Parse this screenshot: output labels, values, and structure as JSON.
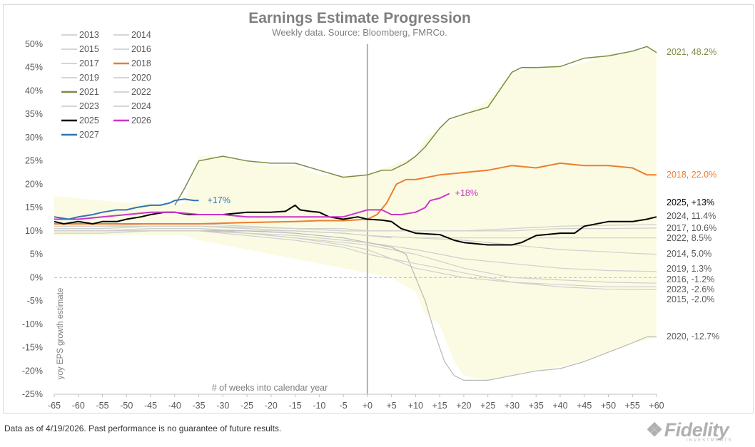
{
  "chart_data": {
    "type": "line",
    "title": "Earnings Estimate Progression",
    "subtitle": "Weekly data.  Source: Bloomberg, FMRCo.",
    "xlabel": "# of weeks into calendar year",
    "ylabel": "yoy EPS growth estimate",
    "xlim": [
      -65,
      60
    ],
    "ylim": [
      -25,
      50
    ],
    "x_ticks": [
      -65,
      -60,
      -55,
      -50,
      -45,
      -40,
      -35,
      -30,
      -25,
      -20,
      -15,
      -10,
      -5,
      0,
      5,
      10,
      15,
      20,
      25,
      30,
      35,
      40,
      45,
      50,
      55,
      60
    ],
    "x_tick_labels": [
      "-65",
      "-60",
      "-55",
      "-50",
      "-45",
      "-40",
      "-35",
      "-30",
      "-25",
      "-20",
      "-15",
      "-10",
      "-5",
      "+0",
      "+5",
      "+10",
      "+15",
      "+20",
      "+25",
      "+30",
      "+35",
      "+40",
      "+45",
      "+50",
      "+55",
      "+60"
    ],
    "y_ticks": [
      -25,
      -20,
      -15,
      -10,
      -5,
      0,
      5,
      10,
      15,
      20,
      25,
      30,
      35,
      40,
      45,
      50
    ],
    "y_tick_labels": [
      "-25%",
      "-20%",
      "-15%",
      "-10%",
      "-5%",
      "0%",
      "5%",
      "10%",
      "15%",
      "20%",
      "25%",
      "30%",
      "35%",
      "40%",
      "45%",
      "50%"
    ],
    "grid": false,
    "reference_lines": {
      "x": 0,
      "y": 0
    },
    "legend": {
      "placement": "top-left",
      "entries": [
        {
          "name": "2013",
          "color": "#c8c8c8"
        },
        {
          "name": "2014",
          "color": "#c8c8c8"
        },
        {
          "name": "2015",
          "color": "#c8c8c8"
        },
        {
          "name": "2016",
          "color": "#c8c8c8"
        },
        {
          "name": "2017",
          "color": "#c8c8c8"
        },
        {
          "name": "2018",
          "color": "#ed7d31"
        },
        {
          "name": "2019",
          "color": "#c8c8c8"
        },
        {
          "name": "2020",
          "color": "#c8c8c8"
        },
        {
          "name": "2021",
          "color": "#7a8c44"
        },
        {
          "name": "2022",
          "color": "#c8c8c8"
        },
        {
          "name": "2023",
          "color": "#c8c8c8"
        },
        {
          "name": "2024",
          "color": "#c8c8c8"
        },
        {
          "name": "2025",
          "color": "#000000"
        },
        {
          "name": "2026",
          "color": "#cc33cc"
        },
        {
          "name": "2027",
          "color": "#2e75b6"
        }
      ]
    },
    "shaded_range": {
      "color": "#fbfbe3",
      "x": [
        -65,
        -60,
        -55,
        -50,
        -45,
        -40,
        -38,
        -35,
        -30,
        -25,
        -20,
        -15,
        -10,
        -5,
        0,
        5,
        10,
        12,
        15,
        18,
        20,
        25,
        30,
        35,
        40,
        45,
        50,
        55,
        60
      ],
      "upper": [
        17.5,
        17,
        16.5,
        16,
        16,
        15.5,
        16,
        26,
        26,
        25,
        24,
        24,
        22,
        22,
        22,
        24,
        26,
        30,
        32,
        34,
        35,
        38,
        44,
        45,
        45,
        46,
        48,
        48.5,
        49
      ],
      "lower": [
        9,
        9,
        9,
        9,
        9,
        9,
        9,
        8,
        7,
        6,
        5,
        4,
        3,
        2,
        1,
        0,
        -3,
        -8,
        -10,
        -18,
        -21,
        -22,
        -21,
        -20,
        -19,
        -18,
        -16,
        -14,
        -13
      ]
    },
    "series": [
      {
        "name": "2013",
        "color": "#cfcfcf",
        "width": 1.2,
        "x": [
          -65,
          -55,
          -45,
          -35,
          -25,
          -15,
          -5,
          0,
          5
        ],
        "y": [
          10.5,
          10.5,
          11,
          11,
          10.5,
          10,
          9.5,
          9,
          8.5
        ]
      },
      {
        "name": "2014",
        "color": "#cfcfcf",
        "width": 1.2,
        "end_label": "2014, 5.0%",
        "x": [
          -65,
          -55,
          -45,
          -35,
          -25,
          -15,
          -5,
          0,
          10,
          20,
          30,
          40,
          50,
          55,
          60
        ],
        "y": [
          10,
          10,
          10.5,
          10.5,
          10,
          10,
          9.5,
          9,
          8.5,
          8,
          7,
          6,
          5.5,
          5.2,
          5.0
        ]
      },
      {
        "name": "2015",
        "color": "#cfcfcf",
        "width": 1.2,
        "end_label": "2015, -2.0%",
        "x": [
          -65,
          -55,
          -45,
          -35,
          -25,
          -15,
          -5,
          0,
          5,
          10,
          20,
          30,
          40,
          50,
          60
        ],
        "y": [
          9.5,
          9.5,
          10,
          10,
          9.5,
          8.5,
          7,
          6,
          4,
          2,
          0,
          -1,
          -1.5,
          -2,
          -2.0
        ]
      },
      {
        "name": "2016",
        "color": "#cfcfcf",
        "width": 1.2,
        "end_label": "2016, -1.2%",
        "x": [
          -65,
          -55,
          -45,
          -35,
          -25,
          -15,
          -5,
          0,
          10,
          20,
          30,
          40,
          50,
          60
        ],
        "y": [
          10,
          10,
          10.5,
          10.5,
          9.5,
          8.5,
          7.5,
          7,
          5,
          2,
          0,
          -0.5,
          -1,
          -1.2
        ]
      },
      {
        "name": "2017",
        "color": "#cfcfcf",
        "width": 1.2,
        "end_label": "2017, 10.6%",
        "x": [
          -65,
          -55,
          -45,
          -35,
          -25,
          -15,
          -5,
          0,
          10,
          20,
          30,
          40,
          50,
          60
        ],
        "y": [
          11,
          11,
          11.5,
          11.5,
          11,
          10.5,
          10,
          10,
          10,
          10,
          10,
          10.5,
          10.5,
          10.6
        ]
      },
      {
        "name": "2018",
        "color": "#ed7d31",
        "width": 2,
        "end_label": "2018, 22.0%",
        "x": [
          -65,
          -55,
          -45,
          -35,
          -25,
          -15,
          -10,
          -5,
          0,
          2,
          4,
          6,
          8,
          10,
          15,
          20,
          25,
          30,
          35,
          40,
          45,
          50,
          55,
          58,
          60
        ],
        "y": [
          11.5,
          11.5,
          11.5,
          11.5,
          11.8,
          12,
          12.2,
          12.2,
          12.5,
          13.5,
          16,
          20,
          21,
          21,
          22,
          22.5,
          23,
          24,
          23.5,
          24.5,
          24,
          24,
          23.5,
          22,
          22.0
        ]
      },
      {
        "name": "2019",
        "color": "#cfcfcf",
        "width": 1.2,
        "end_label": "2019, 1.3%",
        "x": [
          -65,
          -55,
          -45,
          -35,
          -25,
          -15,
          -5,
          0,
          10,
          20,
          30,
          40,
          50,
          60
        ],
        "y": [
          10,
          10,
          10,
          10,
          9.5,
          9,
          8,
          7.5,
          6,
          4,
          3,
          2,
          1.5,
          1.3
        ]
      },
      {
        "name": "2020",
        "color": "#b8b8b8",
        "width": 1.2,
        "end_label": "2020, -12.7%",
        "x": [
          -65,
          -55,
          -45,
          -35,
          -25,
          -15,
          -5,
          0,
          5,
          8,
          10,
          12,
          14,
          16,
          18,
          20,
          25,
          30,
          35,
          40,
          45,
          50,
          55,
          58,
          60
        ],
        "y": [
          10,
          10,
          10,
          10,
          10,
          9.5,
          8.5,
          7.5,
          6.5,
          5,
          0,
          -5,
          -12,
          -18,
          -21,
          -22,
          -22,
          -21,
          -20,
          -19.5,
          -18,
          -16,
          -14,
          -12.7,
          -12.7
        ]
      },
      {
        "name": "2021",
        "color": "#7a8c44",
        "width": 1.5,
        "end_label": "2021, 48.2%",
        "x": [
          -40,
          -38,
          -35,
          -30,
          -25,
          -20,
          -15,
          -10,
          -5,
          0,
          3,
          5,
          8,
          10,
          12,
          15,
          17,
          20,
          25,
          30,
          32,
          35,
          40,
          45,
          50,
          55,
          58,
          60
        ],
        "y": [
          15.5,
          19,
          25,
          26,
          25,
          24.5,
          24.5,
          23,
          21.5,
          22,
          23,
          23,
          24.5,
          26,
          28,
          32,
          34,
          35,
          36.5,
          44,
          45,
          45,
          45.2,
          47,
          47.5,
          48.5,
          49.5,
          48.2
        ]
      },
      {
        "name": "2022",
        "color": "#cfcfcf",
        "width": 1.2,
        "end_label": "2022, 8.5%",
        "x": [
          -65,
          -55,
          -45,
          -35,
          -25,
          -15,
          -5,
          0,
          10,
          20,
          30,
          40,
          50,
          60
        ],
        "y": [
          10.5,
          10.5,
          11,
          11,
          10.5,
          10,
          9.5,
          9,
          8.5,
          8.5,
          8.5,
          8.5,
          8.5,
          8.5
        ]
      },
      {
        "name": "2023",
        "color": "#cfcfcf",
        "width": 1.2,
        "end_label": "2023, -2.6%",
        "x": [
          -65,
          -55,
          -45,
          -35,
          -25,
          -15,
          -5,
          0,
          10,
          20,
          30,
          40,
          50,
          60
        ],
        "y": [
          10,
          10,
          10,
          10,
          9,
          8,
          6.5,
          5,
          3,
          1,
          -1,
          -2,
          -2.5,
          -2.6
        ]
      },
      {
        "name": "2024",
        "color": "#cfcfcf",
        "width": 1.2,
        "end_label": "2024, 11.4%",
        "x": [
          -65,
          -55,
          -45,
          -35,
          -25,
          -15,
          -5,
          0,
          10,
          20,
          30,
          40,
          50,
          60
        ],
        "y": [
          11,
          11,
          11,
          11,
          10.8,
          10.5,
          10.5,
          10,
          10,
          10,
          10.5,
          11,
          11.2,
          11.4
        ]
      },
      {
        "name": "2025",
        "color": "#000000",
        "width": 2,
        "end_label": "2025, +13%",
        "x": [
          -65,
          -63,
          -60,
          -57,
          -55,
          -52,
          -50,
          -47,
          -45,
          -42,
          -40,
          -37,
          -35,
          -30,
          -25,
          -20,
          -17,
          -15,
          -14,
          -12,
          -10,
          -8,
          -5,
          -2,
          0,
          3,
          5,
          7,
          10,
          15,
          18,
          20,
          25,
          30,
          32,
          35,
          40,
          43,
          45,
          50,
          55,
          58,
          60
        ],
        "y": [
          12,
          11.5,
          12,
          11.5,
          12,
          12,
          12.5,
          13,
          13.5,
          14,
          14,
          13.5,
          13.5,
          13.5,
          14,
          14,
          14.2,
          15.5,
          14.5,
          14.2,
          14,
          13,
          12.5,
          13,
          12.5,
          12.3,
          12,
          10.5,
          9.5,
          9.2,
          8,
          7.5,
          7,
          7,
          7.5,
          9,
          9.5,
          9.5,
          11,
          12,
          12,
          12.5,
          13
        ]
      },
      {
        "name": "2026",
        "color": "#cc33cc",
        "width": 2,
        "end_label": "+18%",
        "x": [
          -65,
          -60,
          -55,
          -50,
          -45,
          -40,
          -35,
          -30,
          -25,
          -20,
          -15,
          -10,
          -5,
          0,
          3,
          5,
          7,
          10,
          12,
          13,
          15,
          17
        ],
        "y": [
          12.5,
          12.5,
          13,
          13.5,
          14,
          14,
          13.5,
          13.5,
          13,
          13,
          13,
          13,
          13,
          14.5,
          14.5,
          13.5,
          13.5,
          14,
          15,
          16.5,
          17,
          18
        ]
      },
      {
        "name": "2027",
        "color": "#2e75b6",
        "width": 2,
        "end_label": "+17%",
        "x": [
          -65,
          -62,
          -60,
          -57,
          -55,
          -52,
          -50,
          -48,
          -45,
          -43,
          -41,
          -40,
          -38,
          -36,
          -35
        ],
        "y": [
          13,
          12.5,
          13,
          13.5,
          14,
          14.5,
          14.5,
          15,
          15.5,
          15.5,
          16,
          16.5,
          16.8,
          16.5,
          16.5
        ]
      }
    ]
  },
  "footer": {
    "note": "Data as of 4/19/2026. Past performance is no guarantee of future results.",
    "brand": "Fidelity",
    "brand_sub": "INVESTMENTS"
  }
}
